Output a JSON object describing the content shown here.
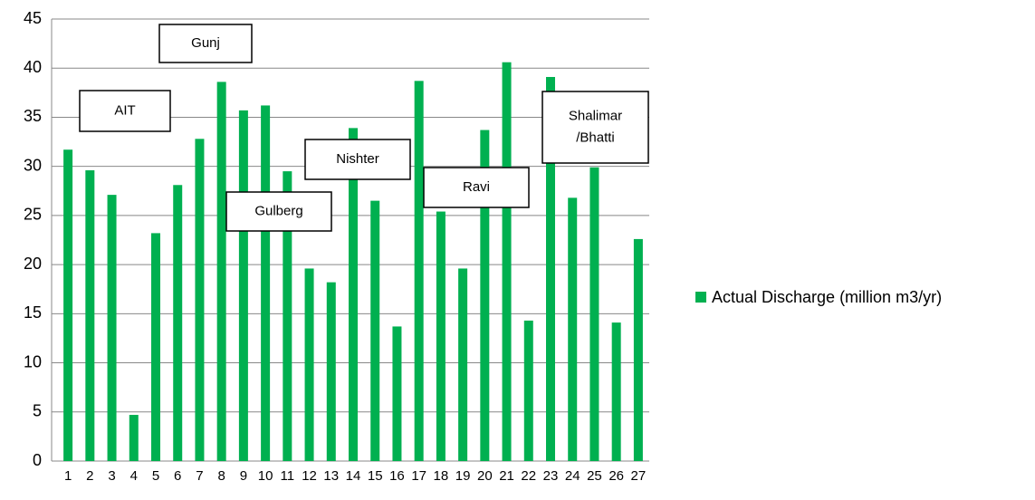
{
  "chart_data": {
    "type": "bar",
    "categories": [
      1,
      2,
      3,
      4,
      5,
      6,
      7,
      8,
      9,
      10,
      11,
      12,
      13,
      14,
      15,
      16,
      17,
      18,
      19,
      20,
      21,
      22,
      23,
      24,
      25,
      26,
      27
    ],
    "series": [
      {
        "name": "Actual Discharge (million m3/yr)",
        "color": "#00b050",
        "values": [
          31.7,
          29.6,
          27.1,
          4.7,
          23.2,
          28.1,
          32.8,
          38.6,
          35.7,
          36.2,
          29.5,
          19.6,
          18.2,
          33.9,
          26.5,
          13.7,
          38.7,
          25.4,
          19.6,
          33.7,
          40.6,
          14.3,
          39.1,
          26.8,
          29.9,
          14.1,
          22.6
        ]
      }
    ],
    "ylim": [
      0,
      45
    ],
    "yticks": [
      0,
      5,
      10,
      15,
      20,
      25,
      30,
      35,
      40,
      45
    ],
    "grid": true,
    "legend": "right",
    "annotations": [
      [
        "Gunj"
      ],
      [
        "AIT"
      ],
      [
        "Nishter"
      ],
      [
        "Gulberg"
      ],
      [
        "Ravi"
      ],
      [
        "Shalimar",
        "/Bhatti"
      ]
    ]
  }
}
